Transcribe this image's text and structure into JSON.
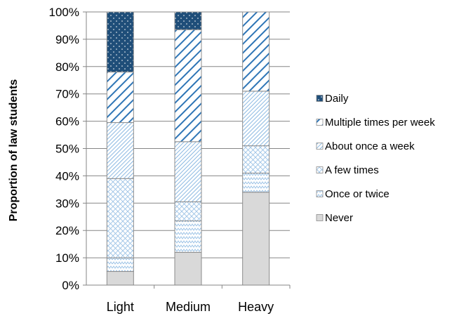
{
  "chart_data": {
    "type": "bar",
    "stacked": true,
    "categories": [
      "Light",
      "Medium",
      "Heavy"
    ],
    "ylabel": "Proportion of law students",
    "xlabel": "",
    "ylim": [
      0,
      100
    ],
    "yticks": [
      "0%",
      "10%",
      "20%",
      "30%",
      "40%",
      "50%",
      "60%",
      "70%",
      "80%",
      "90%",
      "100%"
    ],
    "legend_position": "right",
    "grid": true,
    "series": [
      {
        "name": "Never",
        "values": [
          5,
          12,
          34
        ],
        "pattern": "solid",
        "color": "#d9d9d9"
      },
      {
        "name": "Once or twice",
        "values": [
          5,
          11.5,
          7
        ],
        "pattern": "zigzag",
        "color": "#bdd7ee"
      },
      {
        "name": "A few times",
        "values": [
          29,
          7,
          10
        ],
        "pattern": "crosshatch",
        "color": "#9dc3e6"
      },
      {
        "name": "About once a week",
        "values": [
          20.5,
          22,
          20
        ],
        "pattern": "fine-diagonal",
        "color": "#5b9bd5"
      },
      {
        "name": "Multiple times per week",
        "values": [
          18.5,
          41,
          29
        ],
        "pattern": "wide-diagonal",
        "color": "#2e75b6"
      },
      {
        "name": "Daily",
        "values": [
          22,
          6.5,
          0
        ],
        "pattern": "dotted-dark",
        "color": "#1f4e79"
      }
    ]
  }
}
